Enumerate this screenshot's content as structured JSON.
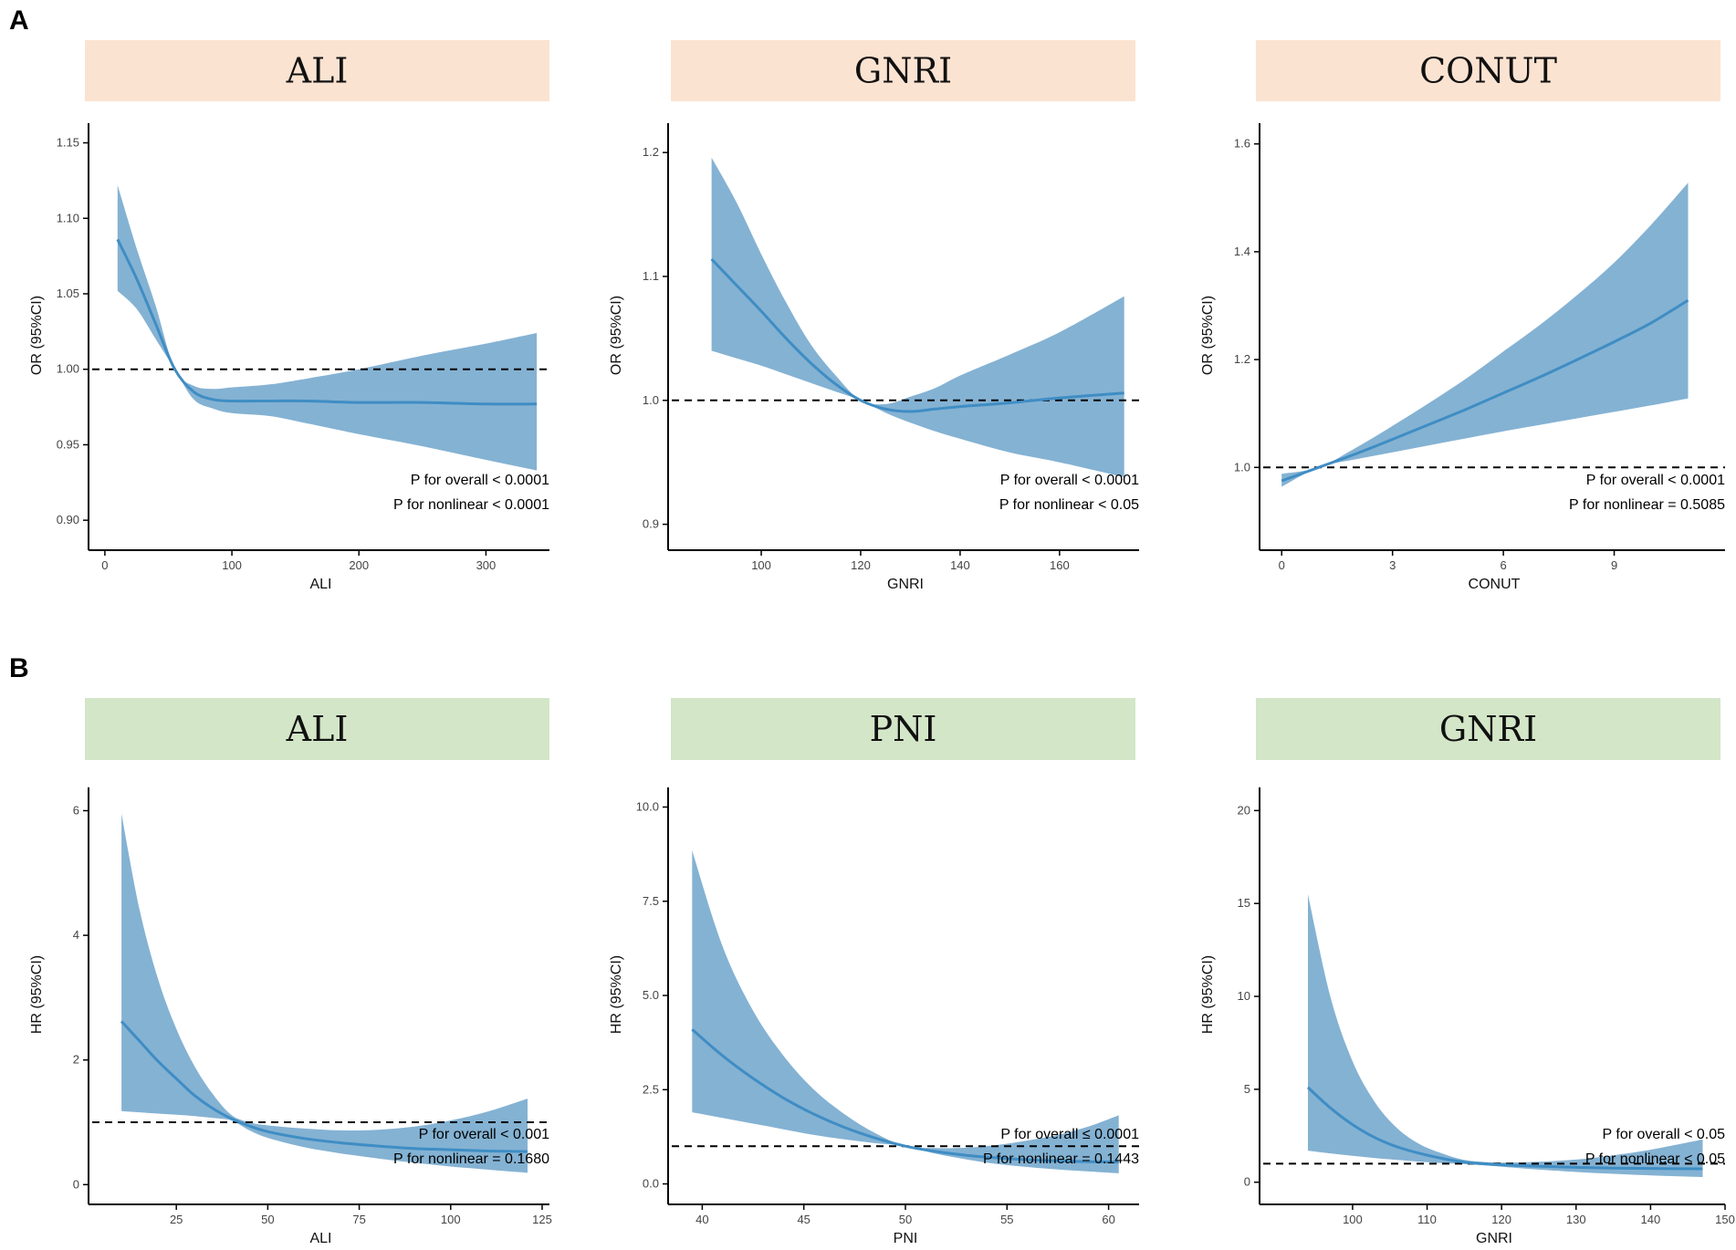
{
  "figure": {
    "section_labels": [
      "A",
      "B"
    ],
    "colors": {
      "header_A": "#fbe3d1",
      "header_B": "#d3e6c8",
      "band": "#7aabcf",
      "curve": "#3f8dc4"
    }
  },
  "chart_data": [
    {
      "type": "area",
      "title": "ALI",
      "section": "A",
      "xlabel": "ALI",
      "ylabel": "OR (95%CI)",
      "xlim": [
        -10,
        350
      ],
      "ylim": [
        0.885,
        1.16
      ],
      "xticks": [
        0,
        100,
        200,
        300
      ],
      "xtick_labels": [
        "0",
        "100",
        "200",
        "300"
      ],
      "yticks": [
        0.9,
        0.95,
        1.0,
        1.05,
        1.1,
        1.15
      ],
      "ytick_labels": [
        "0.90",
        "0.95",
        "1.00",
        "1.05",
        "1.10",
        "1.15"
      ],
      "ref_y": 1.0,
      "x": [
        10,
        25,
        40,
        55,
        70,
        85,
        100,
        130,
        160,
        200,
        250,
        300,
        340
      ],
      "y": [
        1.086,
        1.06,
        1.03,
        1.0,
        0.985,
        0.98,
        0.979,
        0.979,
        0.979,
        0.978,
        0.978,
        0.977,
        0.977
      ],
      "lower": [
        1.052,
        1.04,
        1.02,
        1.0,
        0.98,
        0.974,
        0.971,
        0.969,
        0.964,
        0.957,
        0.949,
        0.94,
        0.933
      ],
      "upper": [
        1.122,
        1.08,
        1.042,
        1.0,
        0.989,
        0.987,
        0.988,
        0.99,
        0.994,
        1.0,
        1.009,
        1.017,
        1.024
      ],
      "annotations": [
        "P for overall < 0.0001",
        "P for nonlinear < 0.0001"
      ]
    },
    {
      "type": "area",
      "title": "GNRI",
      "section": "A",
      "xlabel": "GNRI",
      "ylabel": "OR (95%CI)",
      "xlim": [
        82,
        176
      ],
      "ylim": [
        0.885,
        1.22
      ],
      "xticks": [
        100,
        120,
        140,
        160
      ],
      "xtick_labels": [
        "100",
        "120",
        "140",
        "160"
      ],
      "yticks": [
        0.9,
        1.0,
        1.1,
        1.2
      ],
      "ytick_labels": [
        "0.9",
        "1.0",
        "1.1",
        "1.2"
      ],
      "ref_y": 1.0,
      "x": [
        90,
        95,
        100,
        105,
        110,
        115,
        120,
        125,
        130,
        135,
        140,
        150,
        160,
        173
      ],
      "y": [
        1.114,
        1.093,
        1.072,
        1.05,
        1.03,
        1.013,
        1.0,
        0.993,
        0.991,
        0.993,
        0.995,
        0.998,
        1.002,
        1.006
      ],
      "lower": [
        1.04,
        1.034,
        1.028,
        1.021,
        1.014,
        1.007,
        1.0,
        0.99,
        0.982,
        0.975,
        0.969,
        0.958,
        0.95,
        0.938
      ],
      "upper": [
        1.196,
        1.16,
        1.118,
        1.079,
        1.045,
        1.02,
        1.0,
        0.997,
        1.003,
        1.01,
        1.02,
        1.037,
        1.055,
        1.084
      ],
      "annotations": [
        "P for overall < 0.0001",
        "P for nonlinear < 0.05"
      ]
    },
    {
      "type": "area",
      "title": "CONUT",
      "section": "A",
      "xlabel": "CONUT",
      "ylabel": "OR (95%CI)",
      "xlim": [
        -0.5,
        12
      ],
      "ylim": [
        0.86,
        1.63
      ],
      "xticks": [
        0,
        3,
        6,
        9
      ],
      "xtick_labels": [
        "0",
        "3",
        "6",
        "9"
      ],
      "yticks": [
        1.0,
        1.2,
        1.4,
        1.6
      ],
      "ytick_labels": [
        "1.0",
        "1.2",
        "1.4",
        "1.6"
      ],
      "ref_y": 1.0,
      "x": [
        0,
        1,
        2,
        3,
        4,
        5,
        6,
        7,
        8,
        9,
        10,
        11
      ],
      "y": [
        0.975,
        1.0,
        1.025,
        1.052,
        1.08,
        1.108,
        1.138,
        1.168,
        1.2,
        1.233,
        1.268,
        1.31
      ],
      "lower": [
        0.964,
        1.0,
        1.015,
        1.028,
        1.041,
        1.054,
        1.067,
        1.079,
        1.091,
        1.103,
        1.115,
        1.128
      ],
      "upper": [
        0.988,
        1.0,
        1.036,
        1.077,
        1.12,
        1.165,
        1.215,
        1.265,
        1.32,
        1.38,
        1.45,
        1.528
      ],
      "annotations": [
        "P for overall < 0.0001",
        "P for nonlinear = 0.5085"
      ]
    },
    {
      "type": "area",
      "title": "ALI",
      "section": "B",
      "xlabel": "ALI",
      "ylabel": "HR (95%CI)",
      "xlim": [
        2,
        127
      ],
      "ylim": [
        -0.2,
        6.3
      ],
      "xticks": [
        25,
        50,
        75,
        100,
        125
      ],
      "xtick_labels": [
        "25",
        "50",
        "75",
        "100",
        "125"
      ],
      "yticks": [
        0,
        2,
        4,
        6
      ],
      "ytick_labels": [
        "0",
        "2",
        "4",
        "6"
      ],
      "ref_y": 1.0,
      "x": [
        10,
        15,
        20,
        25,
        30,
        35,
        40,
        45,
        50,
        60,
        70,
        80,
        90,
        100,
        110,
        121
      ],
      "y": [
        2.62,
        2.3,
        1.98,
        1.7,
        1.43,
        1.22,
        1.06,
        0.94,
        0.85,
        0.74,
        0.67,
        0.62,
        0.58,
        0.56,
        0.54,
        0.53
      ],
      "lower": [
        1.18,
        1.16,
        1.14,
        1.12,
        1.1,
        1.07,
        1.03,
        0.87,
        0.75,
        0.6,
        0.5,
        0.42,
        0.35,
        0.29,
        0.24,
        0.19
      ],
      "upper": [
        5.95,
        4.4,
        3.3,
        2.5,
        1.9,
        1.45,
        1.12,
        1.0,
        0.95,
        0.9,
        0.87,
        0.88,
        0.93,
        1.03,
        1.17,
        1.38
      ],
      "annotations": [
        "P for overall < 0.001",
        "P for nonlinear = 0.1680"
      ]
    },
    {
      "type": "area",
      "title": "PNI",
      "section": "B",
      "xlabel": "PNI",
      "ylabel": "HR (95%CI)",
      "xlim": [
        38.5,
        61.5
      ],
      "ylim": [
        -0.35,
        10.4
      ],
      "xticks": [
        40,
        45,
        50,
        55,
        60
      ],
      "xtick_labels": [
        "40",
        "45",
        "50",
        "55",
        "60"
      ],
      "yticks": [
        0,
        2.5,
        5,
        7.5,
        10
      ],
      "ytick_labels": [
        "0.0",
        "2.5",
        "5.0",
        "7.5",
        "10.0"
      ],
      "ref_y": 1.0,
      "x": [
        39.5,
        41,
        42.5,
        44,
        45.5,
        47,
        48.5,
        50,
        51.5,
        53,
        54.5,
        56,
        57.5,
        59,
        60.5
      ],
      "y": [
        4.1,
        3.4,
        2.8,
        2.28,
        1.85,
        1.5,
        1.22,
        1.0,
        0.86,
        0.76,
        0.69,
        0.64,
        0.61,
        0.59,
        0.58
      ],
      "lower": [
        1.9,
        1.75,
        1.6,
        1.45,
        1.3,
        1.18,
        1.08,
        1.0,
        0.8,
        0.65,
        0.53,
        0.45,
        0.38,
        0.33,
        0.28
      ],
      "upper": [
        8.85,
        6.3,
        4.6,
        3.4,
        2.5,
        1.85,
        1.35,
        1.0,
        0.95,
        0.96,
        1.03,
        1.15,
        1.3,
        1.52,
        1.82
      ],
      "annotations": [
        "P for overall ≤ 0.0001",
        "P for nonlinear = 0.1443"
      ]
    },
    {
      "type": "area",
      "title": "GNRI",
      "section": "B",
      "xlabel": "GNRI",
      "ylabel": "HR (95%CI)",
      "xlim": [
        88,
        150
      ],
      "ylim": [
        -0.8,
        21
      ],
      "xticks": [
        100,
        110,
        120,
        130,
        140,
        150
      ],
      "xtick_labels": [
        "100",
        "110",
        "120",
        "130",
        "140",
        "150"
      ],
      "yticks": [
        0,
        5,
        10,
        15,
        20
      ],
      "ytick_labels": [
        "0",
        "5",
        "10",
        "15",
        "20"
      ],
      "ref_y": 1.0,
      "x": [
        94,
        97,
        100,
        103,
        106,
        109,
        112,
        115,
        118,
        121,
        125,
        130,
        135,
        140,
        147
      ],
      "y": [
        5.1,
        4.0,
        3.1,
        2.4,
        1.9,
        1.55,
        1.28,
        1.08,
        0.98,
        0.92,
        0.86,
        0.8,
        0.76,
        0.74,
        0.72
      ],
      "lower": [
        1.7,
        1.55,
        1.42,
        1.3,
        1.2,
        1.1,
        1.03,
        0.98,
        0.9,
        0.8,
        0.68,
        0.55,
        0.45,
        0.37,
        0.28
      ],
      "upper": [
        15.5,
        10.0,
        6.5,
        4.3,
        2.9,
        2.05,
        1.55,
        1.2,
        1.08,
        1.06,
        1.1,
        1.22,
        1.45,
        1.75,
        2.3
      ],
      "annotations": [
        "P for overall < 0.05",
        "P for nonlinear < 0.05"
      ]
    }
  ]
}
